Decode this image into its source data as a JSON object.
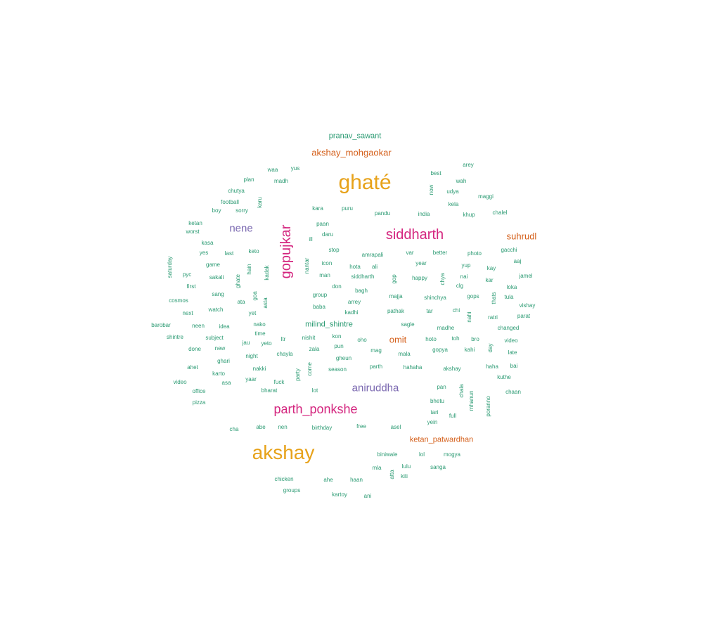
{
  "colors": {
    "background": "#ffffff",
    "orange": "#e7a21a",
    "magenta": "#d4267f",
    "purple": "#7a68b0",
    "vermilion": "#d45f1a",
    "green": "#2a9a72"
  },
  "words": [
    {
      "text": "ghaté",
      "color": "orange"
    },
    {
      "text": "akshay",
      "color": "orange"
    },
    {
      "text": "siddharth",
      "color": "magenta"
    },
    {
      "text": "gopujkar",
      "color": "magenta"
    },
    {
      "text": "parth_ponkshe",
      "color": "magenta"
    },
    {
      "text": "nene",
      "color": "purple"
    },
    {
      "text": "aniruddha",
      "color": "purple"
    },
    {
      "text": "akshay_mohgaokar",
      "color": "vermilion"
    },
    {
      "text": "suhrudl",
      "color": "vermilion"
    },
    {
      "text": "omit",
      "color": "vermilion"
    },
    {
      "text": "ketan_patwardhan",
      "color": "vermilion"
    },
    {
      "text": "pranav_sawant",
      "color": "green"
    },
    {
      "text": "milind_shintre",
      "color": "green"
    },
    {
      "text": "arey",
      "color": "green"
    },
    {
      "text": "waa",
      "color": "green"
    },
    {
      "text": "yus",
      "color": "green"
    },
    {
      "text": "best",
      "color": "green"
    },
    {
      "text": "plan",
      "color": "green"
    },
    {
      "text": "madh",
      "color": "green"
    },
    {
      "text": "wah",
      "color": "green"
    },
    {
      "text": "now",
      "color": "green"
    },
    {
      "text": "udya",
      "color": "green"
    },
    {
      "text": "chutya",
      "color": "green"
    },
    {
      "text": "maggi",
      "color": "green"
    },
    {
      "text": "football",
      "color": "green"
    },
    {
      "text": "karu",
      "color": "green"
    },
    {
      "text": "kela",
      "color": "green"
    },
    {
      "text": "boy",
      "color": "green"
    },
    {
      "text": "sorry",
      "color": "green"
    },
    {
      "text": "kara",
      "color": "green"
    },
    {
      "text": "puru",
      "color": "green"
    },
    {
      "text": "pandu",
      "color": "green"
    },
    {
      "text": "india",
      "color": "green"
    },
    {
      "text": "khup",
      "color": "green"
    },
    {
      "text": "chalel",
      "color": "green"
    },
    {
      "text": "ketan",
      "color": "green"
    },
    {
      "text": "paan",
      "color": "green"
    },
    {
      "text": "worst",
      "color": "green"
    },
    {
      "text": "daru",
      "color": "green"
    },
    {
      "text": "kasa",
      "color": "green"
    },
    {
      "text": "ill",
      "color": "green"
    },
    {
      "text": "gacchi",
      "color": "green"
    },
    {
      "text": "stop",
      "color": "green"
    },
    {
      "text": "better",
      "color": "green"
    },
    {
      "text": "yes",
      "color": "green"
    },
    {
      "text": "last",
      "color": "green"
    },
    {
      "text": "keto",
      "color": "green"
    },
    {
      "text": "amrapali",
      "color": "green"
    },
    {
      "text": "var",
      "color": "green"
    },
    {
      "text": "photo",
      "color": "green"
    },
    {
      "text": "aaj",
      "color": "green"
    },
    {
      "text": "saturday",
      "color": "green"
    },
    {
      "text": "game",
      "color": "green"
    },
    {
      "text": "hain",
      "color": "green"
    },
    {
      "text": "kadak",
      "color": "green"
    },
    {
      "text": "nantar",
      "color": "green"
    },
    {
      "text": "icon",
      "color": "green"
    },
    {
      "text": "hota",
      "color": "green"
    },
    {
      "text": "ali",
      "color": "green"
    },
    {
      "text": "year",
      "color": "green"
    },
    {
      "text": "yup",
      "color": "green"
    },
    {
      "text": "kay",
      "color": "green"
    },
    {
      "text": "pyc",
      "color": "green"
    },
    {
      "text": "sakali",
      "color": "green"
    },
    {
      "text": "man",
      "color": "green"
    },
    {
      "text": "siddharth",
      "color": "green"
    },
    {
      "text": "gop",
      "color": "green"
    },
    {
      "text": "happy",
      "color": "green"
    },
    {
      "text": "chya",
      "color": "green"
    },
    {
      "text": "nai",
      "color": "green"
    },
    {
      "text": "jamel",
      "color": "green"
    },
    {
      "text": "kar",
      "color": "green"
    },
    {
      "text": "first",
      "color": "green"
    },
    {
      "text": "ghate",
      "color": "green"
    },
    {
      "text": "don",
      "color": "green"
    },
    {
      "text": "clg",
      "color": "green"
    },
    {
      "text": "loka",
      "color": "green"
    },
    {
      "text": "sang",
      "color": "green"
    },
    {
      "text": "goa",
      "color": "green"
    },
    {
      "text": "group",
      "color": "green"
    },
    {
      "text": "bagh",
      "color": "green"
    },
    {
      "text": "majja",
      "color": "green"
    },
    {
      "text": "shinchya",
      "color": "green"
    },
    {
      "text": "gops",
      "color": "green"
    },
    {
      "text": "thats",
      "color": "green"
    },
    {
      "text": "tula",
      "color": "green"
    },
    {
      "text": "cosmos",
      "color": "green"
    },
    {
      "text": "ata",
      "color": "green"
    },
    {
      "text": "asta",
      "color": "green"
    },
    {
      "text": "arrey",
      "color": "green"
    },
    {
      "text": "vishay",
      "color": "green"
    },
    {
      "text": "watch",
      "color": "green"
    },
    {
      "text": "baba",
      "color": "green"
    },
    {
      "text": "pathak",
      "color": "green"
    },
    {
      "text": "tar",
      "color": "green"
    },
    {
      "text": "chi",
      "color": "green"
    },
    {
      "text": "next",
      "color": "green"
    },
    {
      "text": "yet",
      "color": "green"
    },
    {
      "text": "kadhi",
      "color": "green"
    },
    {
      "text": "nahi",
      "color": "green"
    },
    {
      "text": "ratri",
      "color": "green"
    },
    {
      "text": "parat",
      "color": "green"
    },
    {
      "text": "barobar",
      "color": "green"
    },
    {
      "text": "neen",
      "color": "green"
    },
    {
      "text": "idea",
      "color": "green"
    },
    {
      "text": "nako",
      "color": "green"
    },
    {
      "text": "sagle",
      "color": "green"
    },
    {
      "text": "madhe",
      "color": "green"
    },
    {
      "text": "changed",
      "color": "green"
    },
    {
      "text": "time",
      "color": "green"
    },
    {
      "text": "kon",
      "color": "green"
    },
    {
      "text": "shintre",
      "color": "green"
    },
    {
      "text": "subject",
      "color": "green"
    },
    {
      "text": "jau",
      "color": "green"
    },
    {
      "text": "yeto",
      "color": "green"
    },
    {
      "text": "ltr",
      "color": "green"
    },
    {
      "text": "nishit",
      "color": "green"
    },
    {
      "text": "oho",
      "color": "green"
    },
    {
      "text": "hoto",
      "color": "green"
    },
    {
      "text": "toh",
      "color": "green"
    },
    {
      "text": "bro",
      "color": "green"
    },
    {
      "text": "video",
      "color": "green"
    },
    {
      "text": "done",
      "color": "green"
    },
    {
      "text": "new",
      "color": "green"
    },
    {
      "text": "pun",
      "color": "green"
    },
    {
      "text": "zala",
      "color": "green"
    },
    {
      "text": "day",
      "color": "green"
    },
    {
      "text": "mag",
      "color": "green"
    },
    {
      "text": "mala",
      "color": "green"
    },
    {
      "text": "gopya",
      "color": "green"
    },
    {
      "text": "kahi",
      "color": "green"
    },
    {
      "text": "late",
      "color": "green"
    },
    {
      "text": "chayla",
      "color": "green"
    },
    {
      "text": "night",
      "color": "green"
    },
    {
      "text": "gheun",
      "color": "green"
    },
    {
      "text": "ghari",
      "color": "green"
    },
    {
      "text": "ahet",
      "color": "green"
    },
    {
      "text": "nakki",
      "color": "green"
    },
    {
      "text": "come",
      "color": "green"
    },
    {
      "text": "parth",
      "color": "green"
    },
    {
      "text": "hahaha",
      "color": "green"
    },
    {
      "text": "akshay",
      "color": "green"
    },
    {
      "text": "haha",
      "color": "green"
    },
    {
      "text": "bai",
      "color": "green"
    },
    {
      "text": "season",
      "color": "green"
    },
    {
      "text": "karto",
      "color": "green"
    },
    {
      "text": "party",
      "color": "green"
    },
    {
      "text": "kuthe",
      "color": "green"
    },
    {
      "text": "video",
      "color": "green"
    },
    {
      "text": "asa",
      "color": "green"
    },
    {
      "text": "yaar",
      "color": "green"
    },
    {
      "text": "fuck",
      "color": "green"
    },
    {
      "text": "chala",
      "color": "green"
    },
    {
      "text": "pan",
      "color": "green"
    },
    {
      "text": "office",
      "color": "green"
    },
    {
      "text": "bharat",
      "color": "green"
    },
    {
      "text": "lot",
      "color": "green"
    },
    {
      "text": "mhanun",
      "color": "green"
    },
    {
      "text": "chaan",
      "color": "green"
    },
    {
      "text": "pizza",
      "color": "green"
    },
    {
      "text": "bhetu",
      "color": "green"
    },
    {
      "text": "poranno",
      "color": "green"
    },
    {
      "text": "tari",
      "color": "green"
    },
    {
      "text": "full",
      "color": "green"
    },
    {
      "text": "yein",
      "color": "green"
    },
    {
      "text": "cha",
      "color": "green"
    },
    {
      "text": "abe",
      "color": "green"
    },
    {
      "text": "nen",
      "color": "green"
    },
    {
      "text": "birthday",
      "color": "green"
    },
    {
      "text": "free",
      "color": "green"
    },
    {
      "text": "asel",
      "color": "green"
    },
    {
      "text": "biniwale",
      "color": "green"
    },
    {
      "text": "lol",
      "color": "green"
    },
    {
      "text": "mogya",
      "color": "green"
    },
    {
      "text": "mla",
      "color": "green"
    },
    {
      "text": "lulu",
      "color": "green"
    },
    {
      "text": "sanga",
      "color": "green"
    },
    {
      "text": "atta",
      "color": "green"
    },
    {
      "text": "kiti",
      "color": "green"
    },
    {
      "text": "chicken",
      "color": "green"
    },
    {
      "text": "ahe",
      "color": "green"
    },
    {
      "text": "haan",
      "color": "green"
    },
    {
      "text": "groups",
      "color": "green"
    },
    {
      "text": "kartoy",
      "color": "green"
    },
    {
      "text": "ani",
      "color": "green"
    }
  ]
}
